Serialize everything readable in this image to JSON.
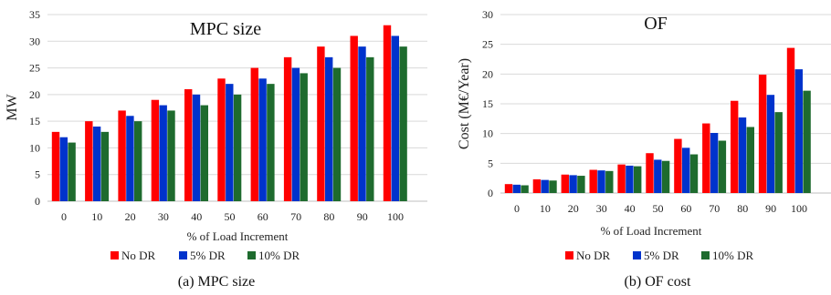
{
  "colors": {
    "No DR": "#ff0000",
    "5% DR": "#0033cc",
    "10% DR": "#1e6b2e"
  },
  "chart_data": [
    {
      "type": "bar",
      "title": "MPC size",
      "xlabel": "% of Load Increment",
      "ylabel": "MW",
      "caption": "(a) MPC size",
      "categories": [
        "0",
        "10",
        "20",
        "30",
        "40",
        "50",
        "60",
        "70",
        "80",
        "90",
        "100"
      ],
      "ylim": [
        0,
        35
      ],
      "yticks": [
        "0",
        "5",
        "10",
        "15",
        "20",
        "25",
        "30",
        "35"
      ],
      "grid": true,
      "legend_position": "bottom",
      "series": [
        {
          "name": "No DR",
          "values": [
            13,
            15,
            17,
            19,
            21,
            23,
            25,
            27,
            29,
            31,
            33
          ]
        },
        {
          "name": "5% DR",
          "values": [
            12,
            14,
            16,
            18,
            20,
            22,
            23,
            25,
            27,
            29,
            31
          ]
        },
        {
          "name": "10% DR",
          "values": [
            11,
            13,
            15,
            17,
            18,
            20,
            22,
            24,
            25,
            27,
            29
          ]
        }
      ]
    },
    {
      "type": "bar",
      "title": "OF",
      "xlabel": "% of Load Increment",
      "ylabel": "Cost (M€/Year)",
      "caption": "(b) OF cost",
      "categories": [
        "0",
        "10",
        "20",
        "30",
        "40",
        "50",
        "60",
        "70",
        "80",
        "90",
        "100"
      ],
      "ylim": [
        0,
        30
      ],
      "yticks": [
        "0",
        "5",
        "10",
        "15",
        "20",
        "25",
        "30"
      ],
      "grid": true,
      "legend_position": "bottom",
      "series": [
        {
          "name": "No DR",
          "values": [
            1.5,
            2.3,
            3.1,
            3.9,
            4.8,
            6.7,
            9.1,
            11.7,
            15.5,
            19.9,
            24.4
          ]
        },
        {
          "name": "5% DR",
          "values": [
            1.4,
            2.2,
            3.0,
            3.8,
            4.6,
            5.6,
            7.6,
            10.1,
            12.7,
            16.5,
            20.8
          ]
        },
        {
          "name": "10% DR",
          "values": [
            1.3,
            2.1,
            2.9,
            3.7,
            4.5,
            5.4,
            6.5,
            8.8,
            11.1,
            13.6,
            17.2
          ]
        }
      ]
    }
  ]
}
